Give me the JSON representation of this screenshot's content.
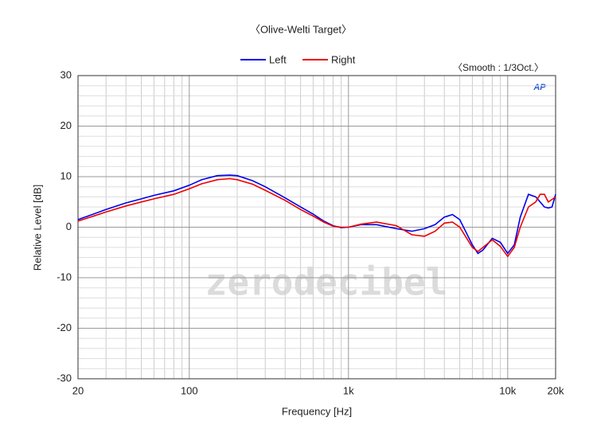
{
  "chart_data": {
    "type": "line",
    "title": "〈Olive-Welti Target〉",
    "annotation": "〈Smooth : 1/3Oct.〉",
    "logo": "AP",
    "watermark": "zerodecibel",
    "x_label": "Frequency [Hz]",
    "y_label": "Relative Level [dB]",
    "log_x": true,
    "grid": true,
    "legend": "top",
    "xlim": [
      20,
      20000
    ],
    "ylim": [
      -30,
      30
    ],
    "xticks": [
      20,
      100,
      {
        "value": 1000,
        "label": "1k"
      },
      {
        "value": 10000,
        "label": "10k"
      },
      {
        "value": 20000,
        "label": "20k"
      }
    ],
    "x_minor_ticks": [
      30,
      40,
      50,
      60,
      70,
      80,
      90,
      200,
      300,
      400,
      500,
      600,
      700,
      800,
      900,
      2000,
      3000,
      4000,
      5000,
      6000,
      7000,
      8000,
      9000
    ],
    "yticks": [
      -30,
      -20,
      -10,
      0,
      10,
      20,
      30
    ],
    "y_minor_ticks": [
      -28,
      -26,
      -24,
      -22,
      -18,
      -16,
      -14,
      -12,
      -8,
      -6,
      -4,
      -2,
      2,
      4,
      6,
      8,
      12,
      14,
      16,
      18,
      22,
      24,
      26,
      28
    ],
    "x": [
      20,
      30,
      40,
      50,
      60,
      80,
      100,
      120,
      150,
      180,
      200,
      250,
      300,
      400,
      500,
      600,
      700,
      800,
      900,
      1000,
      1200,
      1500,
      2000,
      2500,
      3000,
      3500,
      4000,
      4500,
      5000,
      6000,
      6500,
      7000,
      8000,
      9000,
      10000,
      11000,
      12000,
      13500,
      15000,
      16000,
      17000,
      18000,
      19000,
      20000
    ],
    "series": [
      {
        "name": "Left",
        "color": "#0000ee",
        "values": [
          1.5,
          3.5,
          4.8,
          5.6,
          6.3,
          7.2,
          8.3,
          9.4,
          10.2,
          10.3,
          10.2,
          9.2,
          8.0,
          5.8,
          4.0,
          2.6,
          1.2,
          0.3,
          -0.1,
          0,
          0.5,
          0.5,
          -0.3,
          -0.8,
          -0.3,
          0.5,
          2,
          2.5,
          1.5,
          -3.5,
          -5.2,
          -4.5,
          -2.2,
          -3,
          -5.2,
          -3.5,
          2,
          6.5,
          6,
          5,
          4,
          3.8,
          4,
          6.5
        ]
      },
      {
        "name": "Right",
        "color": "#ee0000",
        "values": [
          1.2,
          3,
          4.2,
          5,
          5.6,
          6.5,
          7.6,
          8.6,
          9.4,
          9.6,
          9.4,
          8.5,
          7.3,
          5.3,
          3.5,
          2.2,
          1,
          0.2,
          0,
          0,
          0.6,
          1,
          0.3,
          -1.5,
          -1.8,
          -0.8,
          0.8,
          1,
          0,
          -4,
          -4.8,
          -4,
          -2.5,
          -3.8,
          -5.8,
          -4,
          0,
          4,
          5,
          6.5,
          6.5,
          5,
          5.5,
          6
        ]
      }
    ]
  }
}
